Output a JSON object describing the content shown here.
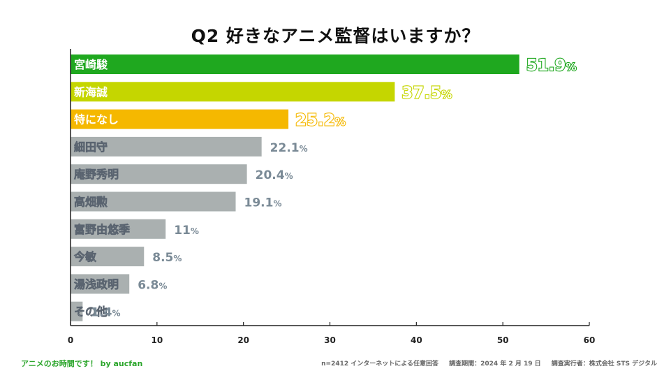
{
  "chart_data": {
    "type": "bar",
    "orientation": "horizontal",
    "title": "Q2 好きなアニメ監督はいますか？",
    "categories": [
      "宮崎駿",
      "新海誠",
      "特になし",
      "細田守",
      "庵野秀明",
      "高畑勲",
      "富野由悠季",
      "今敏",
      "湯浅政明",
      "その他"
    ],
    "values": [
      51.9,
      37.5,
      25.2,
      22.1,
      20.4,
      19.1,
      11,
      8.5,
      6.8,
      1.4
    ],
    "value_labels": [
      "51.9",
      "37.5",
      "25.2",
      "22.1",
      "20.4",
      "19.1",
      "11",
      "8.5",
      "6.8",
      "1.4"
    ],
    "value_suffix": "%",
    "xlim": [
      0,
      60
    ],
    "x_ticks": [
      0,
      10,
      20,
      30,
      40,
      50,
      60
    ],
    "grid": false,
    "colors": [
      "#1fa81f",
      "#c5d600",
      "#f5b800",
      "#aab0b0",
      "#aab0b0",
      "#aab0b0",
      "#aab0b0",
      "#aab0b0",
      "#aab0b0",
      "#aab0b0"
    ],
    "label_colors": [
      "#1fa81f",
      "#c5d600",
      "#f5b800",
      "#7a8a96",
      "#7a8a96",
      "#7a8a96",
      "#7a8a96",
      "#7a8a96",
      "#7a8a96",
      "#7a8a96"
    ]
  },
  "footer": {
    "brand": "アニメのお時間です！ by aucfan",
    "sample": "n=2412 インターネットによる任意回答",
    "period": "調査期間：2024 年 2 月 19 日",
    "organizer": "調査実行者：株式会社 STS デジタル"
  }
}
